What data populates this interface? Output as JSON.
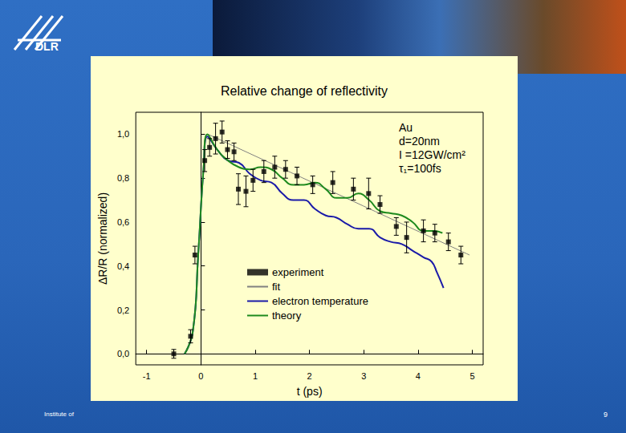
{
  "slide": {
    "logo": "DLR",
    "footer": "Institute of",
    "page": "9"
  },
  "chart_data": {
    "type": "line",
    "title": "Relative change of reflectivity",
    "x_label": "t (ps)",
    "y_label": "ΔR/R (normalized)",
    "annotation": [
      "Au",
      "d=20nm",
      "I =12GW/cm²",
      "τ₁=100fs"
    ],
    "xlim": [
      -1.2,
      5.2
    ],
    "xticks": [
      -1,
      0,
      1,
      2,
      3,
      4,
      5
    ],
    "ylim": [
      -0.05,
      1.1
    ],
    "yticks": [
      {
        "value": 0,
        "label": "0,0"
      },
      {
        "value": 0.2,
        "label": "0,2"
      },
      {
        "value": 0.4,
        "label": "0,4"
      },
      {
        "value": 0.6,
        "label": "0,6"
      },
      {
        "value": 0.8,
        "label": "0,8"
      },
      {
        "value": 1.0,
        "label": "1,0"
      }
    ],
    "grid": false,
    "legend": "center",
    "series": [
      {
        "name": "experiment",
        "type": "scatter",
        "marker": "square",
        "color": "#000000",
        "x": [
          -0.5,
          -0.19,
          -0.11,
          0.07,
          0.16,
          0.27,
          0.39,
          0.49,
          0.61,
          0.69,
          0.83,
          0.96,
          1.16,
          1.36,
          1.56,
          1.77,
          2.06,
          2.43,
          2.81,
          3.09,
          3.3,
          3.6,
          3.79,
          4.1,
          4.31,
          4.56,
          4.79
        ],
        "values": [
          0.0,
          0.08,
          0.45,
          0.88,
          0.94,
          0.98,
          1.01,
          0.93,
          0.92,
          0.75,
          0.74,
          0.79,
          0.83,
          0.85,
          0.84,
          0.81,
          0.77,
          0.78,
          0.75,
          0.73,
          0.68,
          0.58,
          0.53,
          0.56,
          0.55,
          0.51,
          0.45
        ],
        "y_errors": [
          0.02,
          0.03,
          0.04,
          0.05,
          0.04,
          0.07,
          0.05,
          0.04,
          0.04,
          0.07,
          0.07,
          0.05,
          0.05,
          0.05,
          0.04,
          0.04,
          0.04,
          0.05,
          0.05,
          0.07,
          0.04,
          0.04,
          0.07,
          0.05,
          0.04,
          0.04,
          0.04
        ]
      },
      {
        "name": "fit",
        "type": "line",
        "line_style": "solid",
        "color": "#808080",
        "x": [
          0.13,
          4.95
        ],
        "values": [
          1.0,
          0.45
        ]
      },
      {
        "name": "electron temperature",
        "type": "line",
        "line_style": "solid",
        "color": "#1a1aa8",
        "x": [
          -0.3,
          -0.15,
          -0.05,
          0.05,
          0.12,
          0.3,
          0.5,
          0.7,
          0.9,
          1.1,
          1.3,
          1.5,
          1.7,
          1.9,
          2.1,
          2.3,
          2.5,
          2.7,
          2.9,
          3.1,
          3.3,
          3.5,
          3.7,
          3.9,
          4.1,
          4.25,
          4.35,
          4.47
        ],
        "values": [
          0.0,
          0.1,
          0.45,
          0.85,
          0.99,
          0.93,
          0.88,
          0.87,
          0.82,
          0.79,
          0.78,
          0.73,
          0.7,
          0.7,
          0.66,
          0.63,
          0.62,
          0.59,
          0.57,
          0.57,
          0.53,
          0.51,
          0.5,
          0.47,
          0.44,
          0.42,
          0.37,
          0.3
        ]
      },
      {
        "name": "theory",
        "type": "line",
        "line_style": "solid",
        "color": "#1e8a1e",
        "x": [
          -0.3,
          -0.15,
          -0.05,
          0.05,
          0.12,
          0.3,
          0.5,
          0.7,
          0.9,
          1.1,
          1.3,
          1.5,
          1.7,
          1.9,
          2.1,
          2.3,
          2.5,
          2.7,
          2.9,
          3.1,
          3.3,
          3.5,
          3.7,
          3.9,
          4.1,
          4.3,
          4.45
        ],
        "values": [
          0.0,
          0.1,
          0.45,
          0.85,
          1.0,
          0.93,
          0.88,
          0.85,
          0.84,
          0.85,
          0.84,
          0.8,
          0.77,
          0.77,
          0.78,
          0.75,
          0.71,
          0.71,
          0.73,
          0.7,
          0.65,
          0.64,
          0.63,
          0.6,
          0.56,
          0.56,
          0.55
        ]
      }
    ]
  }
}
